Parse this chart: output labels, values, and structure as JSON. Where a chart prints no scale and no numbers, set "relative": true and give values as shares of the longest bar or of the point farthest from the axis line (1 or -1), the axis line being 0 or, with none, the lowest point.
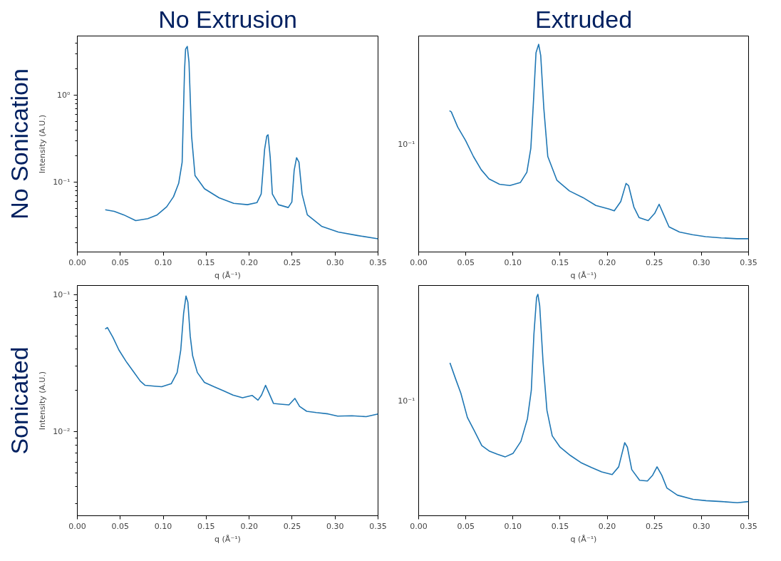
{
  "chart_data": [
    {
      "type": "line",
      "title": "No Extrusion",
      "annotations": [
        "No Sonication"
      ],
      "xlabel": "q (Å⁻¹)",
      "ylabel": "Intensity (A.U.)",
      "log": "y",
      "grid": false,
      "xlim": [
        0,
        0.35
      ],
      "ylim": [
        0.0157,
        4.8
      ],
      "xticks": [
        {
          "value": 0,
          "label": "0.00"
        },
        {
          "value": 0.05,
          "label": "0.05"
        },
        {
          "value": 0.1,
          "label": "0.10"
        },
        {
          "value": 0.15,
          "label": "0.15"
        },
        {
          "value": 0.2,
          "label": "0.20"
        },
        {
          "value": 0.25,
          "label": "0.25"
        },
        {
          "value": 0.3,
          "label": "0.30"
        },
        {
          "value": 0.35,
          "label": "0.35"
        }
      ],
      "yticks": [
        {
          "value": 0.02,
          "label": null
        },
        {
          "value": 0.03,
          "label": null
        },
        {
          "value": 0.04,
          "label": null
        },
        {
          "value": 0.05,
          "label": null
        },
        {
          "value": 0.06,
          "label": null
        },
        {
          "value": 0.07,
          "label": null
        },
        {
          "value": 0.08,
          "label": null
        },
        {
          "value": 0.09,
          "label": null
        },
        {
          "value": 0.1,
          "label": "10⁻¹"
        },
        {
          "value": 0.2,
          "label": null
        },
        {
          "value": 0.3,
          "label": null
        },
        {
          "value": 0.4,
          "label": null
        },
        {
          "value": 0.5,
          "label": null
        },
        {
          "value": 0.6,
          "label": null
        },
        {
          "value": 0.7,
          "label": null
        },
        {
          "value": 0.8,
          "label": null
        },
        {
          "value": 0.9,
          "label": null
        },
        {
          "value": 1,
          "label": "10⁰"
        },
        {
          "value": 2,
          "label": null
        },
        {
          "value": 3,
          "label": null
        },
        {
          "value": 4,
          "label": null
        }
      ],
      "series": [
        {
          "color": "#1f77b4",
          "x": [
            0.0325,
            0.043,
            0.054,
            0.068,
            0.082,
            0.093,
            0.104,
            0.112,
            0.118,
            0.122,
            0.1248,
            0.126,
            0.128,
            0.13,
            0.133,
            0.137,
            0.148,
            0.165,
            0.182,
            0.198,
            0.209,
            0.214,
            0.218,
            0.2205,
            0.222,
            0.2245,
            0.227,
            0.234,
            0.2455,
            0.2497,
            0.2524,
            0.2552,
            0.258,
            0.2616,
            0.2677,
            0.2843,
            0.3037,
            0.326,
            0.35
          ],
          "values": [
            0.048,
            0.046,
            0.042,
            0.036,
            0.038,
            0.042,
            0.052,
            0.068,
            0.097,
            0.169,
            1.94,
            3.39,
            3.64,
            2.39,
            0.339,
            0.119,
            0.084,
            0.066,
            0.057,
            0.055,
            0.058,
            0.073,
            0.239,
            0.339,
            0.351,
            0.194,
            0.073,
            0.055,
            0.051,
            0.059,
            0.137,
            0.191,
            0.169,
            0.073,
            0.042,
            0.031,
            0.0266,
            0.0243,
            0.0223
          ]
        }
      ]
    },
    {
      "type": "line",
      "title": "Extruded",
      "annotations": [
        "10⁻¹"
      ],
      "relative": true,
      "xlabel": "q (Å⁻¹)",
      "grid": false,
      "xlim": [
        0,
        0.35
      ],
      "xticks": [
        {
          "value": 0,
          "label": "0.00"
        },
        {
          "value": 0.05,
          "label": "0.05"
        },
        {
          "value": 0.1,
          "label": "0.10"
        },
        {
          "value": 0.15,
          "label": "0.15"
        },
        {
          "value": 0.2,
          "label": "0.20"
        },
        {
          "value": 0.25,
          "label": "0.25"
        },
        {
          "value": 0.3,
          "label": "0.30"
        },
        {
          "value": 0.35,
          "label": "0.35"
        }
      ],
      "series": [
        {
          "color": "#1f77b4",
          "x": [
            0.0327,
            0.0346,
            0.0415,
            0.0498,
            0.0581,
            0.0664,
            0.0747,
            0.0858,
            0.0968,
            0.108,
            0.1148,
            0.119,
            0.1217,
            0.1245,
            0.1273,
            0.1295,
            0.1328,
            0.137,
            0.1467,
            0.16,
            0.1743,
            0.188,
            0.202,
            0.2075,
            0.2144,
            0.22,
            0.2227,
            0.2283,
            0.2338,
            0.2435,
            0.2504,
            0.2551,
            0.26,
            0.2656,
            0.2767,
            0.2905,
            0.3044,
            0.321,
            0.3376,
            0.35
          ],
          "values": [
            0.68,
            0.675,
            0.601,
            0.537,
            0.46,
            0.396,
            0.352,
            0.326,
            0.32,
            0.335,
            0.384,
            0.499,
            0.716,
            0.959,
            1,
            0.946,
            0.691,
            0.46,
            0.345,
            0.294,
            0.262,
            0.224,
            0.207,
            0.198,
            0.243,
            0.33,
            0.32,
            0.217,
            0.166,
            0.151,
            0.186,
            0.23,
            0.179,
            0.121,
            0.096,
            0.083,
            0.074,
            0.068,
            0.064,
            0.064
          ]
        }
      ]
    },
    {
      "type": "line",
      "annotations": [
        "Sonicated"
      ],
      "xlabel": "q (Å⁻¹)",
      "ylabel": "Intensity (A.U.)",
      "log": "y",
      "grid": false,
      "xlim": [
        0,
        0.35
      ],
      "ylim": [
        0.00245,
        0.1162
      ],
      "xticks": [
        {
          "value": 0,
          "label": "0.00"
        },
        {
          "value": 0.05,
          "label": "0.05"
        },
        {
          "value": 0.1,
          "label": "0.10"
        },
        {
          "value": 0.15,
          "label": "0.15"
        },
        {
          "value": 0.2,
          "label": "0.20"
        },
        {
          "value": 0.25,
          "label": "0.25"
        },
        {
          "value": 0.3,
          "label": "0.30"
        },
        {
          "value": 0.35,
          "label": "0.35"
        }
      ],
      "yticks": [
        {
          "value": 0.003,
          "label": null
        },
        {
          "value": 0.004,
          "label": null
        },
        {
          "value": 0.005,
          "label": null
        },
        {
          "value": 0.006,
          "label": null
        },
        {
          "value": 0.007,
          "label": null
        },
        {
          "value": 0.008,
          "label": null
        },
        {
          "value": 0.009,
          "label": null
        },
        {
          "value": 0.01,
          "label": "10⁻²"
        },
        {
          "value": 0.02,
          "label": null
        },
        {
          "value": 0.03,
          "label": null
        },
        {
          "value": 0.04,
          "label": null
        },
        {
          "value": 0.05,
          "label": null
        },
        {
          "value": 0.06,
          "label": null
        },
        {
          "value": 0.07,
          "label": null
        },
        {
          "value": 0.08,
          "label": null
        },
        {
          "value": 0.09,
          "label": null
        },
        {
          "value": 0.1,
          "label": "10⁻¹"
        }
      ],
      "series": [
        {
          "color": "#1f77b4",
          "x": [
            0.0324,
            0.0351,
            0.0415,
            0.0484,
            0.0567,
            0.065,
            0.0733,
            0.0789,
            0.0899,
            0.0982,
            0.1093,
            0.1162,
            0.1204,
            0.1237,
            0.1265,
            0.1287,
            0.1314,
            0.1342,
            0.1397,
            0.148,
            0.1591,
            0.1702,
            0.1812,
            0.1923,
            0.2034,
            0.2103,
            0.2144,
            0.2191,
            0.2227,
            0.2283,
            0.2366,
            0.2463,
            0.2532,
            0.2587,
            0.267,
            0.2781,
            0.292,
            0.303,
            0.3196,
            0.3362,
            0.35
          ],
          "values": [
            0.056,
            0.0574,
            0.0486,
            0.0394,
            0.0326,
            0.0276,
            0.0234,
            0.0218,
            0.0215,
            0.0213,
            0.0224,
            0.027,
            0.0394,
            0.0726,
            0.0973,
            0.0877,
            0.0498,
            0.0358,
            0.027,
            0.0229,
            0.0213,
            0.0199,
            0.0185,
            0.0177,
            0.0184,
            0.017,
            0.0185,
            0.0218,
            0.0194,
            0.0161,
            0.0159,
            0.0157,
            0.0175,
            0.0153,
            0.0141,
            0.0138,
            0.0135,
            0.013,
            0.0131,
            0.0129,
            0.0135
          ]
        }
      ]
    },
    {
      "type": "line",
      "annotations": [
        "10⁻¹"
      ],
      "relative": true,
      "xlabel": "q (Å⁻¹)",
      "grid": false,
      "xlim": [
        0,
        0.35
      ],
      "xticks": [
        {
          "value": 0,
          "label": "0.00"
        },
        {
          "value": 0.05,
          "label": "0.05"
        },
        {
          "value": 0.1,
          "label": "0.10"
        },
        {
          "value": 0.15,
          "label": "0.15"
        },
        {
          "value": 0.2,
          "label": "0.20"
        },
        {
          "value": 0.25,
          "label": "0.25"
        },
        {
          "value": 0.3,
          "label": "0.30"
        },
        {
          "value": 0.35,
          "label": "0.35"
        }
      ],
      "series": [
        {
          "color": "#1f77b4",
          "x": [
            0.0332,
            0.0393,
            0.0448,
            0.0517,
            0.0587,
            0.067,
            0.0753,
            0.0836,
            0.0919,
            0.1002,
            0.1085,
            0.1154,
            0.1195,
            0.1223,
            0.1251,
            0.1265,
            0.1284,
            0.132,
            0.1361,
            0.1417,
            0.15,
            0.161,
            0.1721,
            0.1832,
            0.1942,
            0.2053,
            0.2122,
            0.2186,
            0.2214,
            0.2261,
            0.2344,
            0.2427,
            0.2482,
            0.2529,
            0.2579,
            0.2634,
            0.2745,
            0.2911,
            0.3049,
            0.3215,
            0.3381,
            0.35
          ],
          "values": [
            0.691,
            0.617,
            0.553,
            0.444,
            0.387,
            0.317,
            0.291,
            0.278,
            0.266,
            0.282,
            0.336,
            0.438,
            0.566,
            0.821,
            0.987,
            1,
            0.949,
            0.693,
            0.476,
            0.361,
            0.31,
            0.272,
            0.24,
            0.218,
            0.198,
            0.186,
            0.221,
            0.33,
            0.31,
            0.208,
            0.16,
            0.157,
            0.183,
            0.221,
            0.183,
            0.125,
            0.093,
            0.074,
            0.068,
            0.064,
            0.059,
            0.064
          ]
        }
      ]
    }
  ]
}
